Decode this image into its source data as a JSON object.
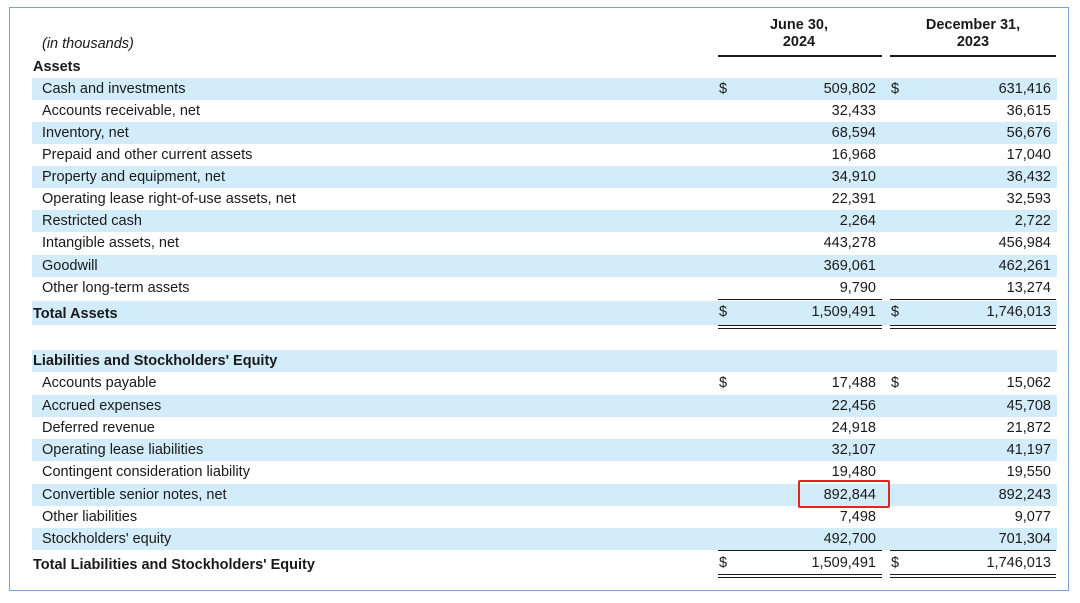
{
  "header": {
    "units": "(in thousands)",
    "col1_line1": "June 30,",
    "col1_line2": "2024",
    "col2_line1": "December 31,",
    "col2_line2": "2023"
  },
  "assets": {
    "title": "Assets",
    "rows": [
      {
        "label": "Cash and investments",
        "cur": "$",
        "v1": "509,802",
        "v2": "631,416"
      },
      {
        "label": "Accounts receivable, net",
        "v1": "32,433",
        "v2": "36,615"
      },
      {
        "label": "Inventory, net",
        "v1": "68,594",
        "v2": "56,676"
      },
      {
        "label": "Prepaid and other current assets",
        "v1": "16,968",
        "v2": "17,040"
      },
      {
        "label": "Property and equipment, net",
        "v1": "34,910",
        "v2": "36,432"
      },
      {
        "label": "Operating lease right-of-use assets, net",
        "v1": "22,391",
        "v2": "32,593"
      },
      {
        "label": "Restricted cash",
        "v1": "2,264",
        "v2": "2,722"
      },
      {
        "label": "Intangible assets, net",
        "v1": "443,278",
        "v2": "456,984"
      },
      {
        "label": "Goodwill",
        "v1": "369,061",
        "v2": "462,261"
      },
      {
        "label": "Other long-term assets",
        "v1": "9,790",
        "v2": "13,274"
      }
    ],
    "total": {
      "label": "Total Assets",
      "cur": "$",
      "v1": "1,509,491",
      "v2": "1,746,013"
    }
  },
  "liabilities": {
    "title": "Liabilities and Stockholders' Equity",
    "rows": [
      {
        "label": "Accounts payable",
        "cur": "$",
        "v1": "17,488",
        "v2": "15,062"
      },
      {
        "label": "Accrued expenses",
        "v1": "22,456",
        "v2": "45,708"
      },
      {
        "label": "Deferred revenue",
        "v1": "24,918",
        "v2": "21,872"
      },
      {
        "label": "Operating lease liabilities",
        "v1": "32,107",
        "v2": "41,197"
      },
      {
        "label": "Contingent consideration liability",
        "v1": "19,480",
        "v2": "19,550"
      },
      {
        "label": "Convertible senior notes, net",
        "v1": "892,844",
        "v2": "892,243"
      },
      {
        "label": "Other liabilities",
        "v1": "7,498",
        "v2": "9,077"
      },
      {
        "label": "Stockholders' equity",
        "v1": "492,700",
        "v2": "701,304"
      }
    ],
    "total": {
      "label": "Total Liabilities and Stockholders' Equity",
      "cur": "$",
      "v1": "1,509,491",
      "v2": "1,746,013"
    }
  },
  "colors": {
    "row_shade": "#d3ecfa",
    "highlight_box": "#e0261f",
    "frame": "#7aa0d8"
  }
}
